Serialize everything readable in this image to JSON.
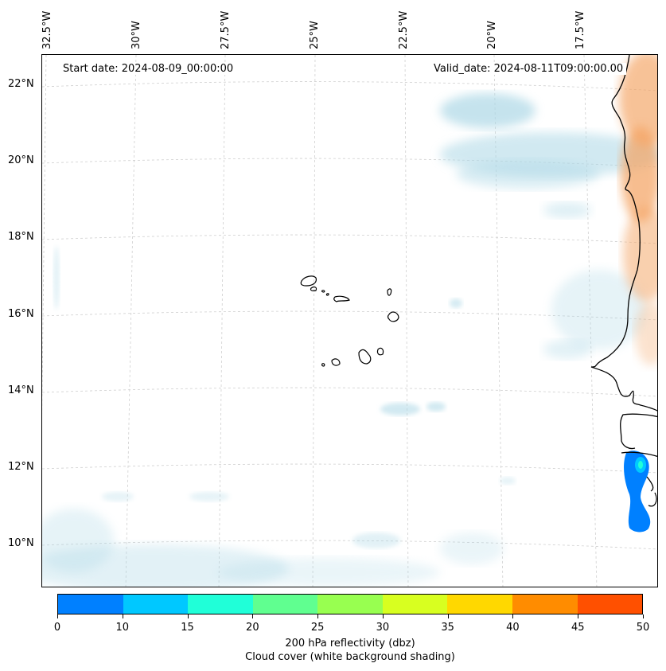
{
  "annotations": {
    "start_date": "Start date: 2024-08-09_00:00:00",
    "valid_date": "Valid_date: 2024-08-11T09:00:00.00"
  },
  "longitude_labels": [
    "32.5°W",
    "30°W",
    "27.5°W",
    "25°W",
    "22.5°W",
    "20°W",
    "17.5°W"
  ],
  "latitude_labels": [
    "22°N",
    "20°N",
    "18°N",
    "16°N",
    "14°N",
    "12°N",
    "10°N"
  ],
  "colorbar": {
    "ticks": [
      "0",
      "10",
      "15",
      "20",
      "25",
      "30",
      "35",
      "40",
      "45",
      "50"
    ],
    "colors": [
      "#0080ff",
      "#00c8ff",
      "#20ffd8",
      "#60ff90",
      "#98ff50",
      "#d8ff20",
      "#ffd800",
      "#ff8c00",
      "#ff5000"
    ],
    "label_line1": "200 hPa reflectivity (dbz)",
    "label_line2": "Cloud cover (white background shading)"
  },
  "palette": {
    "cloud": "#add8e6",
    "dust": "#f4a261",
    "coast": "#000000"
  }
}
